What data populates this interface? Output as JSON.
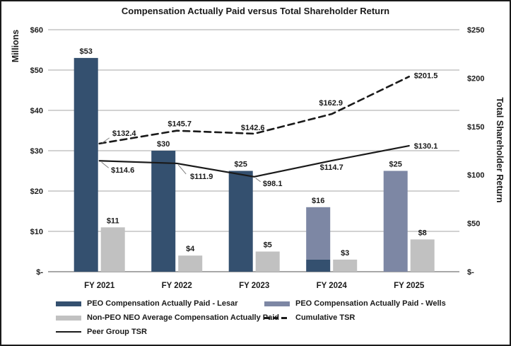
{
  "chart_data": {
    "type": "combo-bar-line",
    "title": "Compensation Actually Paid versus Total Shareholder Return",
    "left_axis": {
      "title": "Millions",
      "tick_labels": [
        "$60",
        "$50",
        "$40",
        "$30",
        "$20",
        "$10",
        "$-"
      ],
      "tick_values": [
        60,
        50,
        40,
        30,
        20,
        10,
        0
      ],
      "range": [
        0,
        60
      ],
      "grid": true
    },
    "right_axis": {
      "title": "Total Shareholder Return",
      "tick_labels": [
        "$250",
        "$200",
        "$150",
        "$100",
        "$50",
        "$-"
      ],
      "tick_values": [
        250,
        200,
        150,
        100,
        50,
        0
      ],
      "range": [
        0,
        250
      ]
    },
    "categories": [
      "FY 2021",
      "FY 2022",
      "FY 2023",
      "FY 2024",
      "FY 2025"
    ],
    "bar_columns": [
      {
        "category": "FY 2021",
        "lesar": 53,
        "wells": 0,
        "neo": 11,
        "peo_label": "$53",
        "neo_label": "$11"
      },
      {
        "category": "FY 2022",
        "lesar": 30,
        "wells": 0,
        "neo": 4,
        "peo_label": "$30",
        "neo_label": "$4"
      },
      {
        "category": "FY 2023",
        "lesar": 25,
        "wells": 0,
        "neo": 5,
        "peo_label": "$25",
        "neo_label": "$5"
      },
      {
        "category": "FY 2024",
        "lesar": 3,
        "wells": 13,
        "neo": 3,
        "peo_label": "$16",
        "neo_label": "$3"
      },
      {
        "category": "FY 2025",
        "lesar": 0,
        "wells": 25,
        "neo": 8,
        "peo_label": "$25",
        "neo_label": "$8"
      }
    ],
    "line_series": [
      {
        "name": "Cumulative TSR",
        "style": "dashed",
        "axis": "right",
        "values": [
          132.4,
          145.7,
          142.6,
          162.9,
          201.5
        ],
        "point_labels": [
          "$132.4",
          "$145.7",
          "$142.6",
          "$162.9",
          "$201.5"
        ]
      },
      {
        "name": "Peer Group TSR",
        "style": "solid",
        "axis": "right",
        "values": [
          114.6,
          111.9,
          98.1,
          114.7,
          130.1
        ],
        "point_labels": [
          "$114.6",
          "$111.9",
          "$98.1",
          "$114.7",
          "$130.1"
        ]
      }
    ],
    "colors": {
      "lesar": "#34506F",
      "wells": "#7D87A4",
      "neo": "#C1C1C1",
      "line": "#1A1A1A",
      "gridline": "#A6A6A6",
      "axis_line": "#8C8C8C",
      "text": "#1A1A1A"
    },
    "legend": {
      "left_column": [
        {
          "swatch": "bar-lesar",
          "label": "PEO Compensation Actually Paid - Lesar"
        },
        {
          "swatch": "bar-neo",
          "label": "Non-PEO NEO Average Compensation Actually Paid"
        },
        {
          "swatch": "line-solid",
          "label": "Peer Group TSR"
        }
      ],
      "right_column": [
        {
          "swatch": "bar-wells",
          "label": "PEO Compensation Actually Paid - Wells"
        },
        {
          "swatch": "line-dashed",
          "label": "Cumulative TSR"
        }
      ]
    }
  }
}
